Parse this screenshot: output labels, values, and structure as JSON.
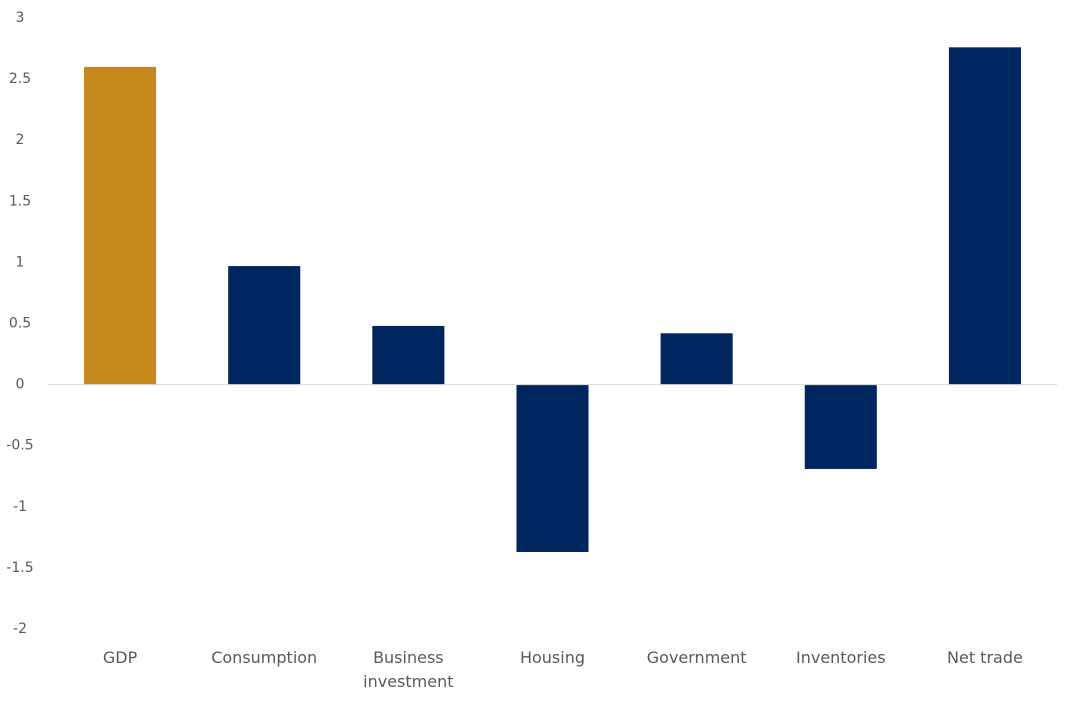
{
  "chart_data": {
    "type": "bar",
    "categories": [
      "GDP",
      "Consumption",
      "Business investment",
      "Housing",
      "Government",
      "Inventories",
      "Net trade"
    ],
    "values": [
      2.6,
      0.97,
      0.48,
      -1.37,
      0.42,
      -0.69,
      2.76
    ],
    "colors": [
      "#c4891a",
      "#002660",
      "#002660",
      "#002660",
      "#002660",
      "#002660",
      "#002660"
    ],
    "ylim": [
      -2,
      3
    ],
    "yticks": [
      -2,
      -1.5,
      -1,
      -0.5,
      0,
      0.5,
      1,
      1.5,
      2,
      2.5,
      3
    ],
    "grid": false
  }
}
